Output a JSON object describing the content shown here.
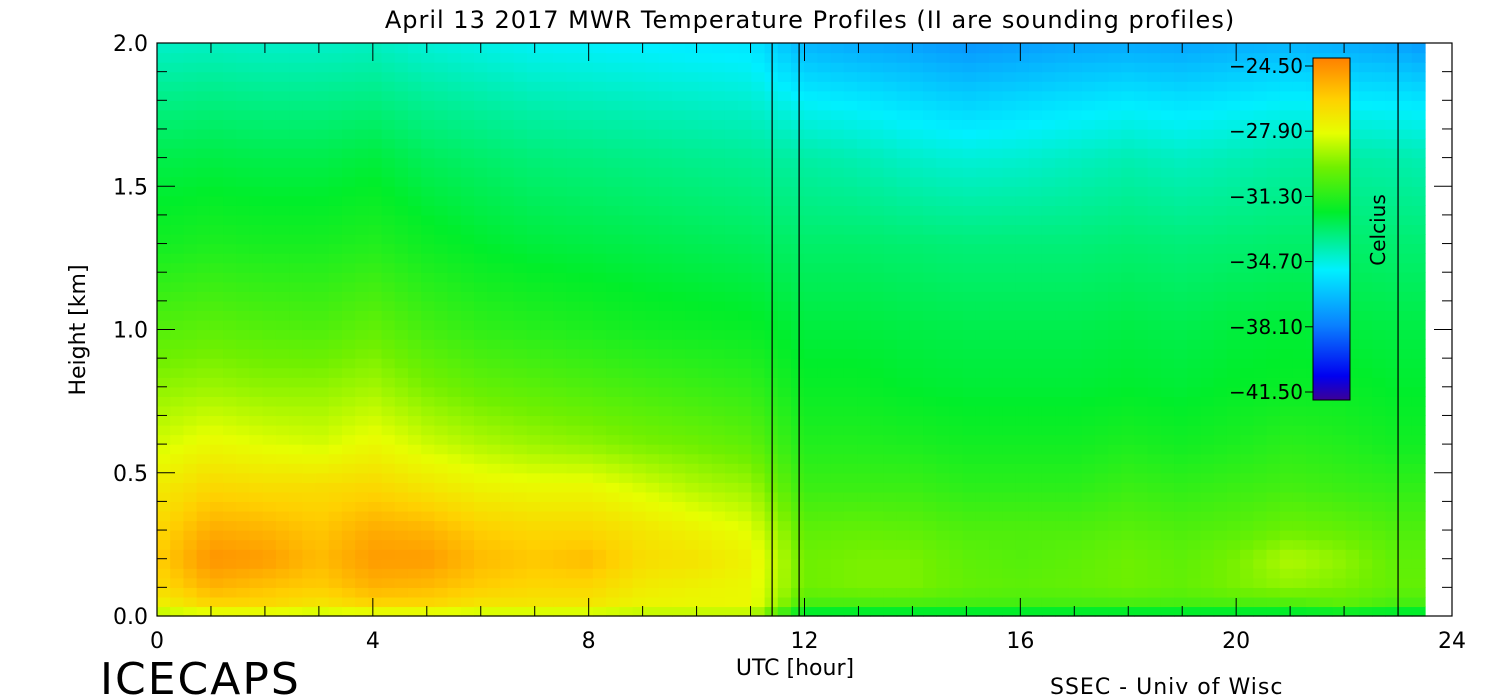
{
  "chart_data": {
    "type": "heatmap",
    "title": "April 13 2017 MWR Temperature Profiles (II are sounding profiles)",
    "xlabel": "UTC [hour]",
    "ylabel": "Height [km]",
    "xlim": [
      0,
      24
    ],
    "ylim": [
      0,
      2
    ],
    "x_ticks": [
      "0",
      "4",
      "8",
      "12",
      "16",
      "20",
      "24"
    ],
    "y_ticks": [
      "0.0",
      "0.5",
      "1.0",
      "1.5",
      "2.0"
    ],
    "colorbar": {
      "label": "Celcius",
      "range": [
        -41.5,
        -24.5
      ],
      "ticks": [
        "-24.50",
        "-27.90",
        "-31.30",
        "-34.70",
        "-38.10",
        "-41.50"
      ]
    },
    "heights_km": [
      0.0,
      0.03,
      0.1,
      0.2,
      0.3,
      0.45,
      0.6,
      0.8,
      1.0,
      1.3,
      1.6,
      1.8,
      2.0
    ],
    "times_hour": [
      0,
      1,
      2,
      3,
      4,
      5,
      6,
      7,
      8,
      9,
      10,
      11,
      12,
      13,
      14,
      15,
      16,
      17,
      18,
      19,
      20,
      21,
      22,
      23,
      23.5
    ],
    "temperature_c": [
      [
        -29.5,
        -29.5,
        -29.5,
        -29.5,
        -29.5,
        -29.5,
        -29.5,
        -29.5,
        -29.5,
        -29.5,
        -29.5,
        -29.5,
        -33.5,
        -33.5,
        -33.5,
        -33.5,
        -33.5,
        -33.5,
        -33.5,
        -33.5,
        -33.5,
        -33.5,
        -33.5,
        -33.5,
        -33.5
      ],
      [
        -28.0,
        -27.0,
        -27.0,
        -27.5,
        -27.0,
        -27.0,
        -27.5,
        -27.5,
        -27.5,
        -28.0,
        -28.0,
        -28.0,
        -31.0,
        -31.0,
        -31.0,
        -31.0,
        -31.0,
        -31.0,
        -31.0,
        -31.0,
        -31.0,
        -31.0,
        -30.5,
        -31.0,
        -31.0
      ],
      [
        -27.0,
        -25.8,
        -26.2,
        -26.5,
        -25.8,
        -26.0,
        -26.5,
        -26.8,
        -26.8,
        -27.5,
        -27.8,
        -28.0,
        -30.0,
        -29.8,
        -29.8,
        -30.2,
        -30.3,
        -30.2,
        -30.0,
        -30.2,
        -29.8,
        -29.5,
        -29.8,
        -30.2,
        -30.2
      ],
      [
        -26.5,
        -25.0,
        -25.2,
        -26.0,
        -25.2,
        -25.2,
        -26.0,
        -26.3,
        -26.0,
        -27.0,
        -27.2,
        -27.8,
        -30.0,
        -29.8,
        -29.8,
        -30.3,
        -30.5,
        -30.3,
        -30.0,
        -30.3,
        -29.8,
        -29.0,
        -29.5,
        -30.3,
        -30.3
      ],
      [
        -26.8,
        -25.6,
        -25.8,
        -26.3,
        -25.6,
        -25.8,
        -26.5,
        -26.8,
        -26.8,
        -27.3,
        -27.8,
        -28.3,
        -30.3,
        -30.2,
        -30.3,
        -30.6,
        -30.6,
        -30.6,
        -30.4,
        -30.6,
        -30.4,
        -30.0,
        -30.2,
        -30.6,
        -30.6
      ],
      [
        -27.5,
        -26.8,
        -27.0,
        -27.0,
        -26.8,
        -27.3,
        -27.8,
        -28.0,
        -28.0,
        -28.5,
        -29.0,
        -29.3,
        -31.0,
        -31.0,
        -31.0,
        -31.3,
        -31.3,
        -31.3,
        -31.0,
        -31.2,
        -31.0,
        -30.8,
        -31.0,
        -31.2,
        -31.2
      ],
      [
        -28.5,
        -28.0,
        -28.3,
        -28.5,
        -28.0,
        -28.6,
        -29.0,
        -29.3,
        -29.5,
        -29.8,
        -30.0,
        -30.3,
        -31.5,
        -31.5,
        -31.6,
        -31.8,
        -31.8,
        -31.8,
        -31.6,
        -31.8,
        -31.6,
        -31.3,
        -31.5,
        -31.8,
        -31.8
      ],
      [
        -29.5,
        -29.3,
        -29.5,
        -29.5,
        -29.2,
        -29.8,
        -30.2,
        -30.4,
        -30.6,
        -30.8,
        -31.0,
        -31.2,
        -32.0,
        -32.0,
        -32.2,
        -32.3,
        -32.3,
        -32.3,
        -32.2,
        -32.3,
        -32.1,
        -32.0,
        -32.0,
        -32.2,
        -32.2
      ],
      [
        -30.5,
        -30.3,
        -30.5,
        -30.6,
        -30.2,
        -30.8,
        -31.2,
        -31.4,
        -31.6,
        -31.8,
        -31.9,
        -32.0,
        -32.4,
        -32.4,
        -32.5,
        -32.6,
        -32.6,
        -32.6,
        -32.5,
        -32.6,
        -32.4,
        -32.3,
        -32.4,
        -32.5,
        -32.5
      ],
      [
        -31.8,
        -31.6,
        -31.7,
        -31.7,
        -31.5,
        -31.9,
        -32.2,
        -32.4,
        -32.5,
        -32.6,
        -32.7,
        -32.8,
        -33.0,
        -33.0,
        -33.1,
        -33.2,
        -33.2,
        -33.2,
        -33.1,
        -33.2,
        -33.1,
        -33.0,
        -33.0,
        -33.1,
        -33.1
      ],
      [
        -32.6,
        -32.5,
        -32.6,
        -32.6,
        -32.4,
        -32.8,
        -33.0,
        -33.2,
        -33.3,
        -33.4,
        -33.5,
        -33.6,
        -33.8,
        -34.0,
        -34.3,
        -34.5,
        -34.4,
        -34.2,
        -34.0,
        -34.2,
        -34.0,
        -33.8,
        -33.8,
        -33.9,
        -34.0
      ],
      [
        -33.4,
        -33.3,
        -33.4,
        -33.4,
        -33.3,
        -33.6,
        -33.8,
        -34.0,
        -34.1,
        -34.2,
        -34.3,
        -34.4,
        -35.0,
        -35.2,
        -35.5,
        -35.8,
        -35.6,
        -35.4,
        -35.2,
        -35.4,
        -35.2,
        -35.0,
        -35.1,
        -35.2,
        -35.3
      ],
      [
        -34.3,
        -34.2,
        -34.3,
        -34.3,
        -34.2,
        -34.5,
        -34.7,
        -34.9,
        -35.0,
        -35.1,
        -35.2,
        -35.3,
        -36.5,
        -36.8,
        -37.0,
        -37.3,
        -37.1,
        -36.9,
        -36.8,
        -36.9,
        -36.7,
        -36.5,
        -36.7,
        -36.9,
        -37.2
      ]
    ]
  },
  "footer": {
    "left_brand": "ICECAPS",
    "right_credit": "SSEC - Univ of Wisc"
  }
}
